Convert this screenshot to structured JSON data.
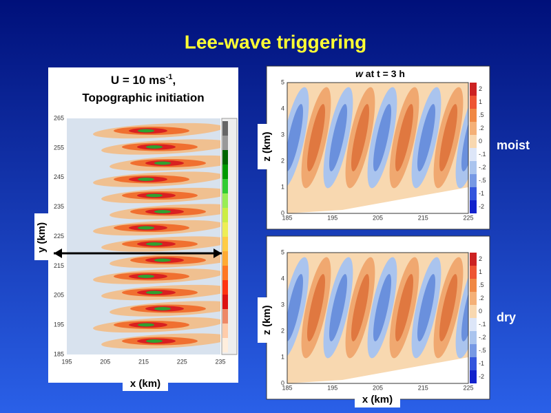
{
  "title": "Lee-wave triggering",
  "left_panel": {
    "title_line1": "U = 10 ms",
    "title_sup": "-1",
    "title_comma": ",",
    "title_line2": "Topographic initiation",
    "y_label": "y (km)",
    "x_label": "x (km)",
    "x_ticks": [
      "195",
      "205",
      "215",
      "225",
      "235"
    ],
    "y_ticks": [
      "185",
      "195",
      "205",
      "215",
      "225",
      "235",
      "245",
      "255",
      "265"
    ]
  },
  "top_panel": {
    "title_var": "w",
    "title_rest": "at  t = 3 h",
    "y_label": "z (km)",
    "x_ticks": [
      "185",
      "195",
      "205",
      "215",
      "225"
    ],
    "y_ticks": [
      "0",
      "1",
      "2",
      "3",
      "4",
      "5"
    ],
    "colorbar_ticks": [
      "2",
      "1",
      ".5",
      ".2",
      "0",
      "-.1",
      "-.2",
      "-.5",
      "-1",
      "-2"
    ],
    "side_label": "moist"
  },
  "bottom_panel": {
    "y_label": "z (km)",
    "x_label": "x (km)",
    "x_ticks": [
      "185",
      "195",
      "205",
      "215",
      "225"
    ],
    "y_ticks": [
      "0",
      "1",
      "2",
      "3",
      "4",
      "5"
    ],
    "colorbar_ticks": [
      "2",
      "1",
      ".5",
      ".2",
      "0",
      "-.1",
      "-.2",
      "-.5",
      "-1",
      "-2"
    ],
    "side_label": "dry"
  }
}
